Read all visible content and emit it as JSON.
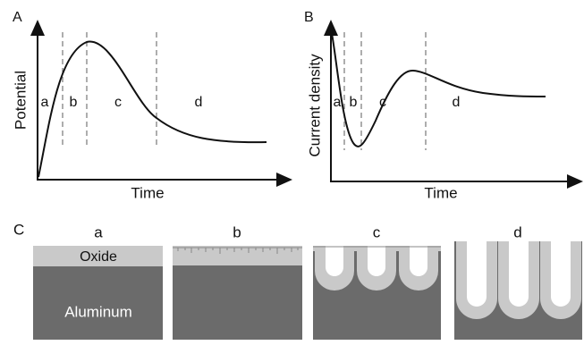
{
  "panels": [
    {
      "label": "A",
      "y_axis": "Potential",
      "x_axis": "Time",
      "regions": [
        "a",
        "b",
        "c",
        "d"
      ]
    },
    {
      "label": "B",
      "y_axis": "Current density",
      "x_axis": "Time",
      "regions": [
        "a",
        "b",
        "c",
        "d"
      ]
    },
    {
      "label": "C",
      "stages": [
        "a",
        "b",
        "c",
        "d"
      ],
      "layers": {
        "oxide": "Oxide",
        "metal": "Aluminum"
      }
    }
  ]
}
